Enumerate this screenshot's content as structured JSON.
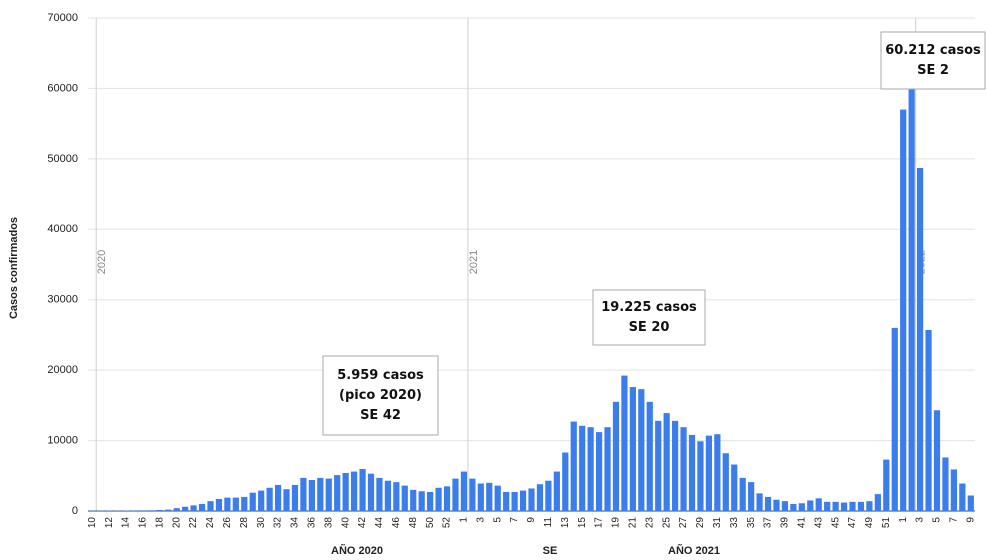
{
  "chart_data": {
    "type": "bar",
    "y_label": "Casos confirmados",
    "x_group_labels": [
      "AÑO 2020",
      "SE",
      "AÑO 2021"
    ],
    "year_markers": [
      "2020",
      "2021",
      "2022"
    ],
    "annotations": [
      {
        "lines": [
          "5.959 casos",
          "(pico 2020)",
          "SE 42"
        ]
      },
      {
        "lines": [
          "19.225 casos",
          "SE 20"
        ]
      },
      {
        "lines": [
          "60.212 casos",
          "SE 2"
        ]
      }
    ],
    "color": "#3b7ded",
    "grid": true,
    "ylim": [
      0,
      70000
    ],
    "yticks": [
      0,
      10000,
      20000,
      30000,
      40000,
      50000,
      60000,
      70000
    ],
    "categories": [
      "10",
      null,
      "12",
      null,
      "14",
      null,
      "16",
      null,
      "18",
      null,
      "20",
      null,
      "22",
      null,
      "24",
      null,
      "26",
      null,
      "28",
      null,
      "30",
      null,
      "32",
      null,
      "34",
      null,
      "36",
      null,
      "38",
      null,
      "40",
      null,
      "42",
      null,
      "44",
      null,
      "46",
      null,
      "48",
      null,
      "50",
      null,
      "52",
      null,
      "1",
      null,
      "3",
      null,
      "5",
      null,
      "7",
      null,
      "9",
      null,
      "11",
      null,
      "13",
      null,
      "15",
      null,
      "17",
      null,
      "19",
      null,
      "21",
      null,
      "23",
      null,
      "25",
      null,
      "27",
      null,
      "29",
      null,
      "31",
      null,
      "33",
      null,
      "35",
      null,
      "37",
      null,
      "39",
      null,
      "41",
      null,
      "43",
      null,
      "45",
      null,
      "47",
      null,
      "49",
      null,
      "51",
      null,
      "1",
      null,
      "3",
      null,
      "5",
      null,
      "7",
      null,
      "9"
    ],
    "values": [
      50,
      50,
      60,
      60,
      70,
      80,
      90,
      100,
      150,
      200,
      400,
      600,
      800,
      1000,
      1400,
      1700,
      1900,
      1900,
      2000,
      2600,
      2900,
      3300,
      3700,
      3100,
      3700,
      4700,
      4400,
      4700,
      4600,
      5100,
      5400,
      5600,
      5959,
      5300,
      4700,
      4300,
      4100,
      3600,
      3000,
      2800,
      2700,
      3300,
      3500,
      4600,
      5600,
      4600,
      3900,
      4000,
      3600,
      2700,
      2700,
      2900,
      3200,
      3800,
      4300,
      5600,
      8300,
      12700,
      12100,
      11900,
      11200,
      11900,
      15500,
      19225,
      17600,
      17300,
      15500,
      12800,
      13900,
      12800,
      11900,
      10800,
      9900,
      10700,
      10900,
      8200,
      6600,
      4700,
      4100,
      2500,
      2000,
      1600,
      1400,
      1000,
      1100,
      1500,
      1800,
      1300,
      1300,
      1200,
      1300,
      1300,
      1400,
      2400,
      7300,
      26000,
      57000,
      60212,
      48700,
      25700,
      14300,
      7600,
      5900,
      3900,
      2200
    ]
  }
}
